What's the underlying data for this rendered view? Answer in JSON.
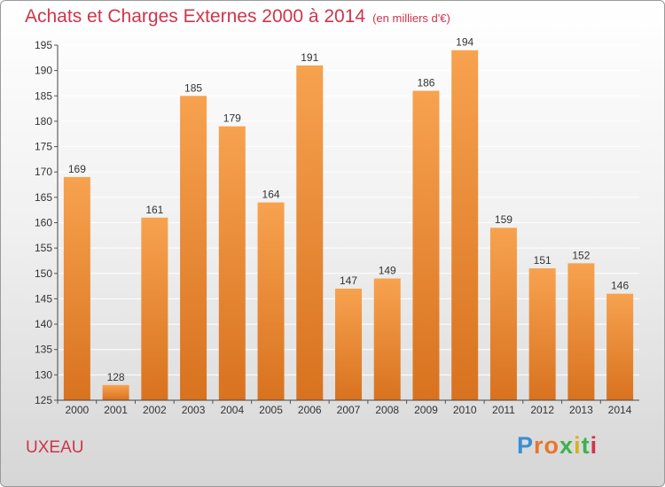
{
  "header": {
    "title": "Achats et Charges Externes 2000 à 2014",
    "subtitle": "(en milliers d'€)"
  },
  "footer": {
    "commune": "UXEAU",
    "logo_text": "Proxiti"
  },
  "colors": {
    "bar_top": "#f7a24f",
    "bar_bottom": "#d8721f",
    "title": "#d0344a",
    "grid": "#ffffff"
  },
  "chart_data": {
    "type": "bar",
    "title": "Achats et Charges Externes 2000 à 2014",
    "subtitle": "(en milliers d'€)",
    "categories": [
      "2000",
      "2001",
      "2002",
      "2003",
      "2004",
      "2005",
      "2006",
      "2007",
      "2008",
      "2009",
      "2010",
      "2011",
      "2012",
      "2013",
      "2014"
    ],
    "values": [
      169,
      128,
      161,
      185,
      179,
      164,
      191,
      147,
      149,
      186,
      194,
      159,
      151,
      152,
      146
    ],
    "ylim": [
      125,
      195
    ],
    "yticks": [
      125,
      130,
      135,
      140,
      145,
      150,
      155,
      160,
      165,
      170,
      175,
      180,
      185,
      190,
      195
    ],
    "grid": true,
    "legend": "none"
  }
}
